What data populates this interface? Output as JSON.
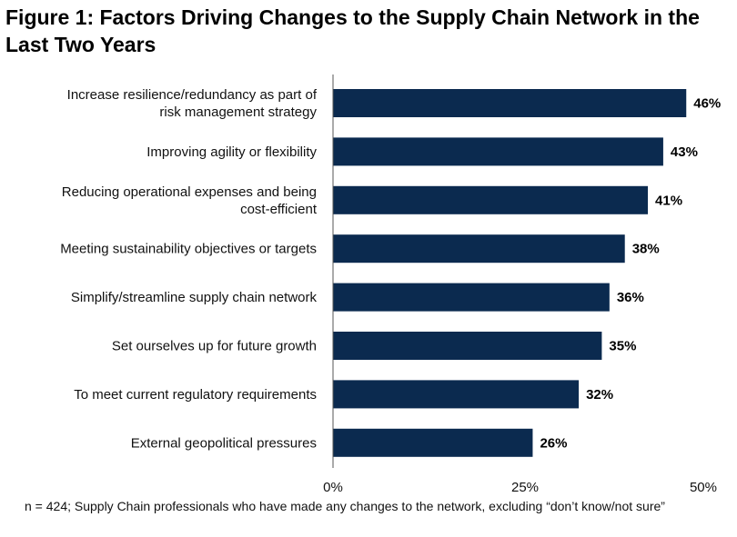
{
  "chart_data": {
    "type": "bar",
    "orientation": "horizontal",
    "title": "Figure 1: Factors Driving Changes to the Supply Chain Network in the Last Two Years",
    "categories": [
      [
        "Increase resilience/redundancy as part of",
        "risk management strategy"
      ],
      [
        "Improving agility or flexibility"
      ],
      [
        "Reducing operational expenses and being",
        "cost-efficient"
      ],
      [
        "Meeting sustainability objectives or targets"
      ],
      [
        "Simplify/streamline supply chain network"
      ],
      [
        "Set ourselves up for future growth"
      ],
      [
        "To meet current regulatory requirements"
      ],
      [
        "External geopolitical pressures"
      ]
    ],
    "values": [
      46,
      43,
      41,
      38,
      36,
      35,
      32,
      26
    ],
    "value_labels": [
      "46%",
      "43%",
      "41%",
      "38%",
      "36%",
      "35%",
      "32%",
      "26%"
    ],
    "xlim": [
      0,
      50
    ],
    "x_ticks": [
      0,
      25,
      50
    ],
    "x_tick_labels": [
      "0%",
      "25%",
      "50%"
    ],
    "grid": false,
    "legend": "none",
    "bar_color": "#0b2a4f"
  },
  "footnote": "n = 424; Supply Chain professionals who have made any changes to the network, excluding “don’t know/not sure”"
}
